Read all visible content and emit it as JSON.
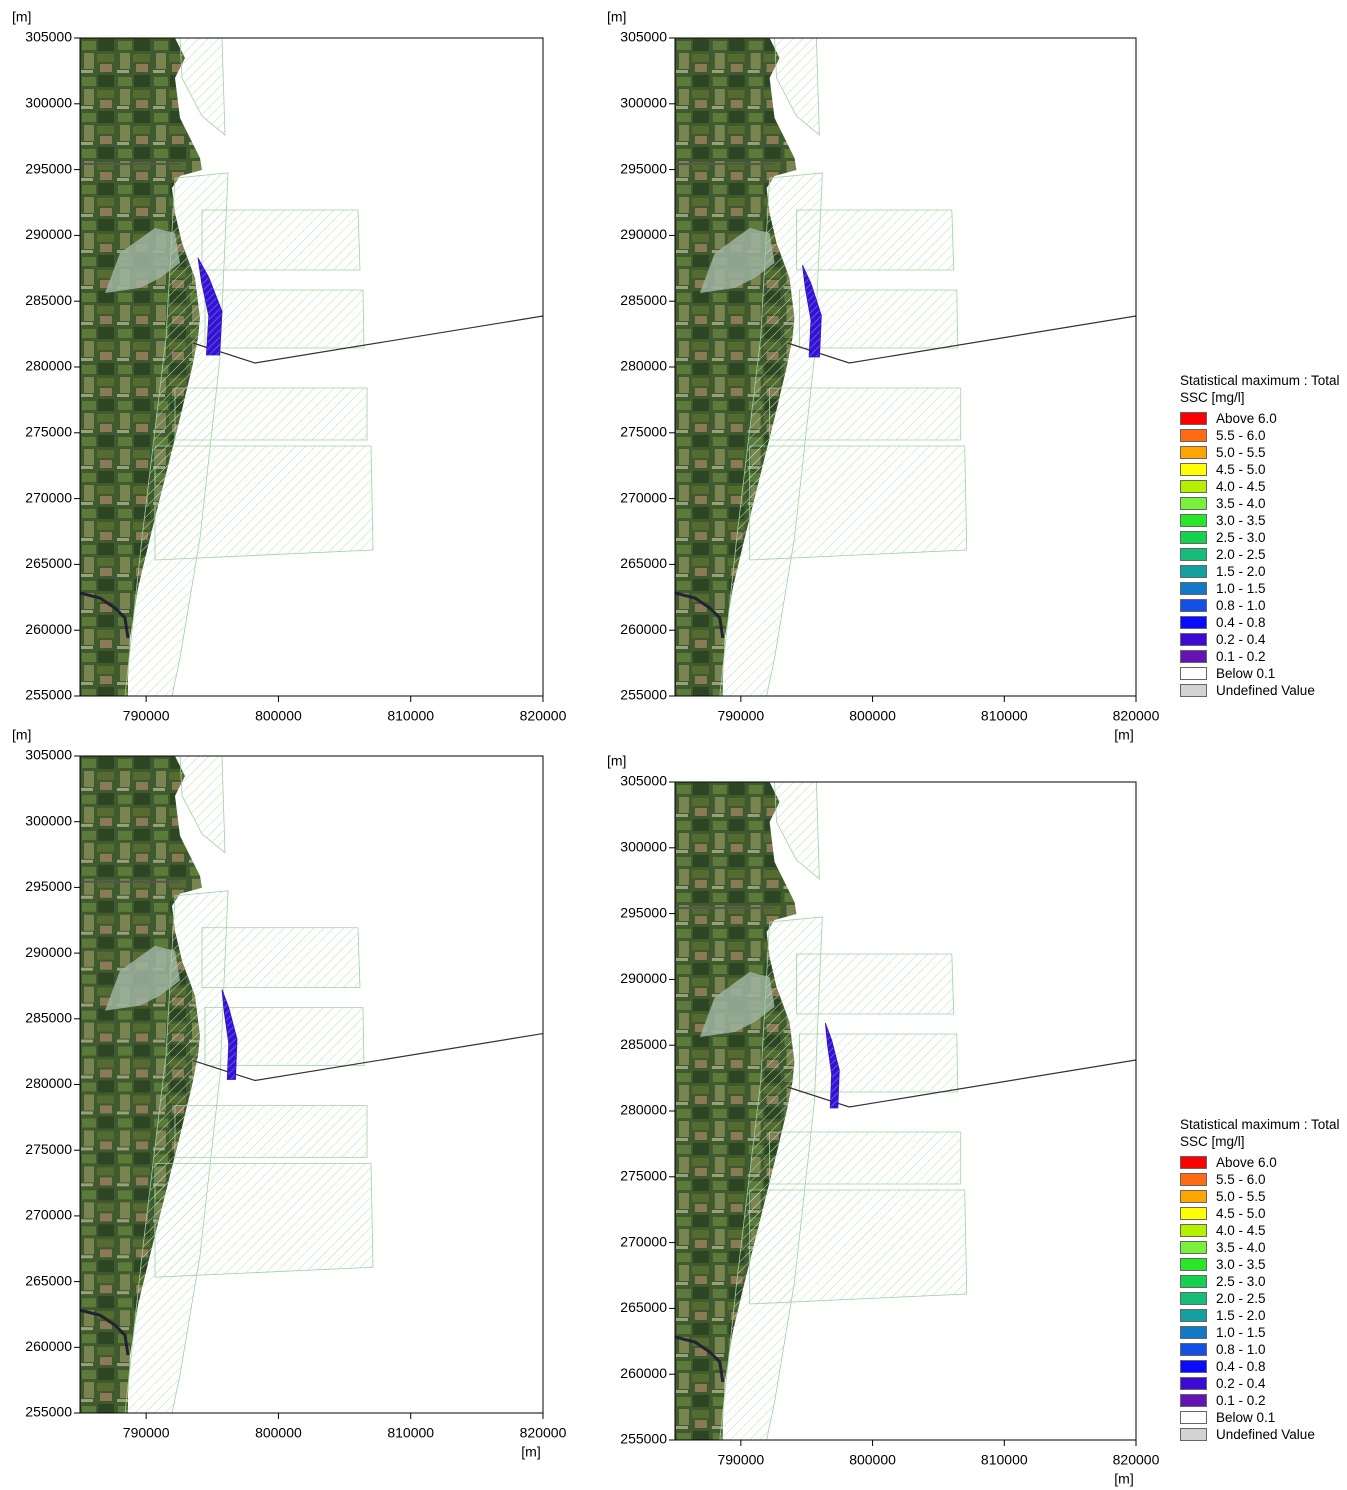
{
  "chart_data": [
    {
      "type": "map",
      "ylabel": "[m]",
      "xlim": [
        785000,
        820000
      ],
      "ylim": [
        255000,
        305000
      ],
      "xticks": [
        790000,
        800000,
        810000,
        820000
      ],
      "yticks": [
        255000,
        260000,
        265000,
        270000,
        275000,
        280000,
        285000,
        290000,
        295000,
        300000,
        305000
      ]
    },
    {
      "type": "map",
      "ylabel": "[m]",
      "xlabel": "[m]",
      "xlim": [
        785000,
        820000
      ],
      "ylim": [
        255000,
        305000
      ],
      "xticks": [
        790000,
        800000,
        810000,
        820000
      ],
      "yticks": [
        255000,
        260000,
        265000,
        270000,
        275000,
        280000,
        285000,
        290000,
        295000,
        300000,
        305000
      ]
    },
    {
      "type": "map",
      "ylabel": "[m]",
      "xlabel": "[m]",
      "xlim": [
        785000,
        820000
      ],
      "ylim": [
        255000,
        305000
      ],
      "xticks": [
        790000,
        800000,
        810000,
        820000
      ],
      "yticks": [
        255000,
        260000,
        265000,
        270000,
        275000,
        280000,
        285000,
        290000,
        295000,
        300000,
        305000
      ]
    },
    {
      "type": "map",
      "ylabel": "[m]",
      "xlabel": "[m]",
      "xlim": [
        785000,
        820000
      ],
      "ylim": [
        255000,
        305000
      ],
      "xticks": [
        790000,
        800000,
        810000,
        820000
      ],
      "yticks": [
        255000,
        260000,
        265000,
        270000,
        275000,
        280000,
        285000,
        290000,
        295000,
        300000,
        305000
      ]
    }
  ],
  "legends": [
    {
      "title": "Statistical maximum : Total SSC [mg/l]",
      "entries": [
        {
          "label": "Above 6.0",
          "color": "#ff0000"
        },
        {
          "label": "5.5 - 6.0",
          "color": "#ff6a13"
        },
        {
          "label": "5.0 - 5.5",
          "color": "#ffa500"
        },
        {
          "label": "4.5 - 5.0",
          "color": "#ffff00"
        },
        {
          "label": "4.0 - 4.5",
          "color": "#b4f000"
        },
        {
          "label": "3.5 - 4.0",
          "color": "#78f03c"
        },
        {
          "label": "3.0 - 3.5",
          "color": "#28e628"
        },
        {
          "label": "2.5 - 3.0",
          "color": "#14d250"
        },
        {
          "label": "2.0 - 2.5",
          "color": "#14be78"
        },
        {
          "label": "1.5 - 2.0",
          "color": "#14a0a0"
        },
        {
          "label": "1.0 - 1.5",
          "color": "#1478c8"
        },
        {
          "label": "0.8 - 1.0",
          "color": "#1450e6"
        },
        {
          "label": "0.4 - 0.8",
          "color": "#0a0aff"
        },
        {
          "label": "0.2 - 0.4",
          "color": "#3c0ad2"
        },
        {
          "label": "0.1 - 0.2",
          "color": "#6414b4"
        },
        {
          "label": "Below 0.1",
          "color": "#ffffff"
        },
        {
          "label": "Undefined Value",
          "color": "#d3d3d3"
        }
      ]
    },
    {
      "title": "Statistical maximum : Total SSC [mg/l]",
      "entries": [
        {
          "label": "Above 6.0",
          "color": "#ff0000"
        },
        {
          "label": "5.5 - 6.0",
          "color": "#ff6a13"
        },
        {
          "label": "5.0 - 5.5",
          "color": "#ffa500"
        },
        {
          "label": "4.5 - 5.0",
          "color": "#ffff00"
        },
        {
          "label": "4.0 - 4.5",
          "color": "#b4f000"
        },
        {
          "label": "3.5 - 4.0",
          "color": "#78f03c"
        },
        {
          "label": "3.0 - 3.5",
          "color": "#28e628"
        },
        {
          "label": "2.5 - 3.0",
          "color": "#14d250"
        },
        {
          "label": "2.0 - 2.5",
          "color": "#14be78"
        },
        {
          "label": "1.5 - 2.0",
          "color": "#14a0a0"
        },
        {
          "label": "1.0 - 1.5",
          "color": "#1478c8"
        },
        {
          "label": "0.8 - 1.0",
          "color": "#1450e6"
        },
        {
          "label": "0.4 - 0.8",
          "color": "#0a0aff"
        },
        {
          "label": "0.2 - 0.4",
          "color": "#3c0ad2"
        },
        {
          "label": "0.1 - 0.2",
          "color": "#6414b4"
        },
        {
          "label": "Below 0.1",
          "color": "#ffffff"
        },
        {
          "label": "Undefined Value",
          "color": "#d3d3d3"
        }
      ]
    }
  ]
}
